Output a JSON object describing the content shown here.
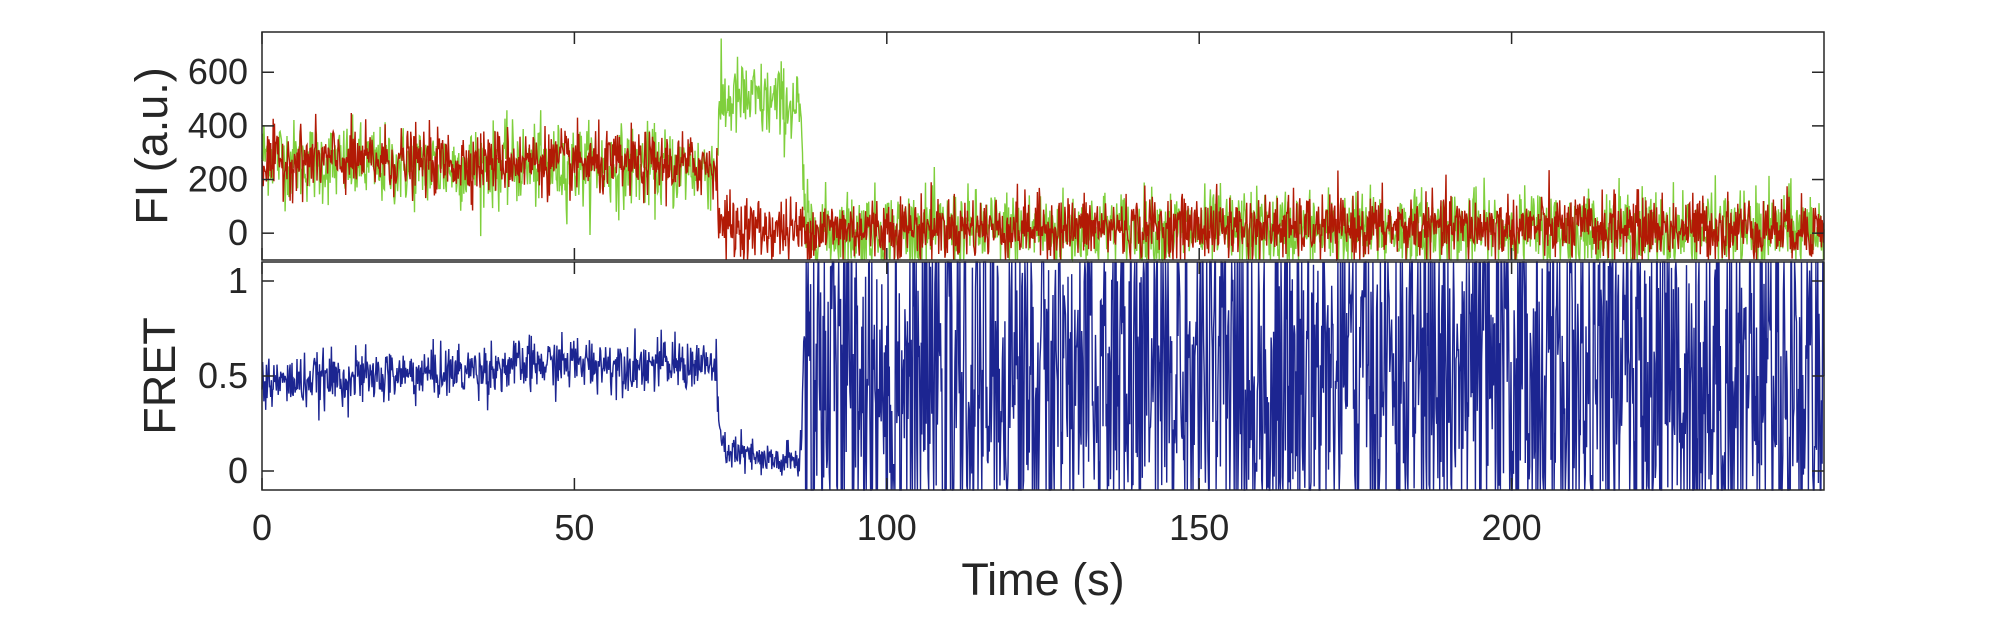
{
  "colors": {
    "donor": "#7fcf3c",
    "acceptor": "#b21a05",
    "fret": "#1c2591",
    "axis": "#262626"
  },
  "chart_data": [
    {
      "type": "line",
      "panel": "intensity",
      "ylabel": "FI (a.u.)",
      "xlabel": "",
      "xlim": [
        0,
        250
      ],
      "ylim": [
        -100,
        750
      ],
      "yticks": [
        0,
        200,
        400,
        600
      ],
      "xticks": [
        0,
        50,
        100,
        150,
        200
      ],
      "grid": false,
      "series": [
        {
          "color_key": "donor",
          "x": [
            0,
            5,
            10,
            15,
            20,
            25,
            30,
            35,
            40,
            45,
            50,
            55,
            60,
            65,
            70,
            72.5,
            73.5,
            76,
            80,
            84,
            86,
            87,
            90,
            100,
            110,
            120,
            130,
            140,
            150,
            160,
            170,
            180,
            190,
            200,
            210,
            220,
            230,
            240,
            250
          ],
          "y": [
            300,
            270,
            260,
            255,
            250,
            250,
            245,
            250,
            255,
            250,
            250,
            245,
            245,
            240,
            245,
            240,
            480,
            500,
            490,
            480,
            470,
            20,
            10,
            10,
            10,
            10,
            10,
            10,
            10,
            10,
            10,
            10,
            10,
            10,
            10,
            10,
            10,
            10,
            10
          ],
          "noise": 75
        },
        {
          "color_key": "acceptor",
          "x": [
            0,
            5,
            10,
            15,
            20,
            25,
            30,
            35,
            40,
            45,
            50,
            55,
            60,
            65,
            70,
            72.5,
            73.5,
            76,
            80,
            84,
            86,
            87,
            90,
            100,
            110,
            120,
            130,
            140,
            150,
            160,
            170,
            180,
            190,
            200,
            210,
            220,
            230,
            240,
            250
          ],
          "y": [
            260,
            270,
            270,
            270,
            270,
            265,
            265,
            265,
            270,
            270,
            260,
            255,
            255,
            255,
            255,
            255,
            40,
            20,
            15,
            10,
            10,
            10,
            15,
            20,
            20,
            20,
            20,
            20,
            20,
            20,
            20,
            20,
            20,
            20,
            20,
            20,
            20,
            20,
            20
          ],
          "noise": 60
        }
      ]
    },
    {
      "type": "line",
      "panel": "fret",
      "ylabel": "FRET",
      "xlabel": "Time (s)",
      "xlim": [
        0,
        250
      ],
      "ylim": [
        -0.1,
        1.1
      ],
      "yticks": [
        0,
        0.5,
        1
      ],
      "xticks": [
        0,
        50,
        100,
        150,
        200
      ],
      "grid": false,
      "series": [
        {
          "color_key": "fret",
          "x": [
            0,
            10,
            20,
            30,
            40,
            50,
            60,
            70,
            72.5,
            73.5,
            76,
            80,
            84,
            86,
            87,
            90,
            100,
            120,
            140,
            160,
            180,
            200,
            220,
            240,
            250
          ],
          "y": [
            0.46,
            0.48,
            0.5,
            0.52,
            0.55,
            0.57,
            0.56,
            0.56,
            0.55,
            0.12,
            0.1,
            0.05,
            0.05,
            0.05,
            0.5,
            0.5,
            0.5,
            0.5,
            0.5,
            0.5,
            0.5,
            0.5,
            0.5,
            0.5,
            0.5
          ],
          "noise_by_segment": [
            {
              "from": 0,
              "to": 73,
              "noise": 0.07
            },
            {
              "from": 73,
              "to": 86.5,
              "noise": 0.05
            },
            {
              "from": 86.5,
              "to": 250,
              "noise": 0.6
            }
          ]
        }
      ]
    }
  ]
}
